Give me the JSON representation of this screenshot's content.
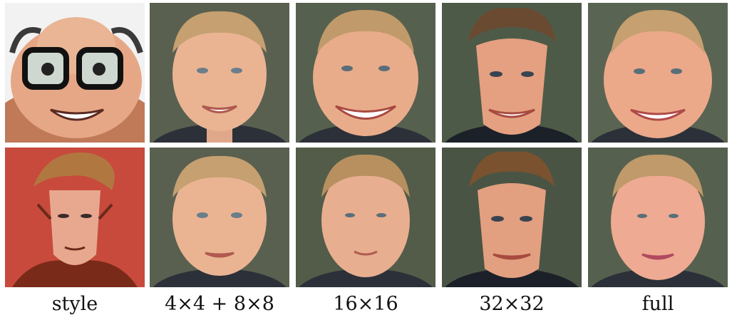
{
  "labels": {
    "style": "style",
    "col1": "4×4 + 8×8",
    "col2": "16×16",
    "col3": "32×32",
    "col4": "full"
  }
}
